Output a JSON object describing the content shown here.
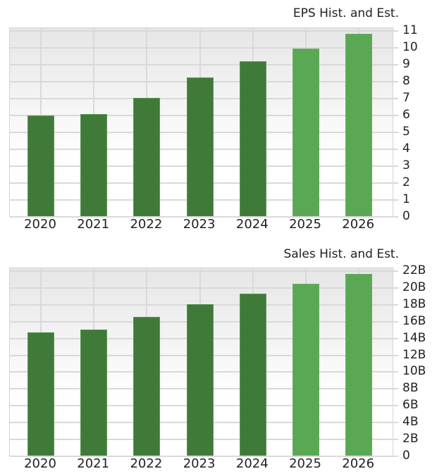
{
  "colors": {
    "historical": "#3f7a39",
    "estimate": "#5aa854",
    "grid": "#d9d9d9"
  },
  "chart_data": [
    {
      "type": "bar",
      "title": "EPS Hist. and Est.",
      "categories": [
        "2020",
        "2021",
        "2022",
        "2023",
        "2024",
        "2025",
        "2026"
      ],
      "values": [
        5.95,
        6.05,
        7.0,
        8.2,
        9.15,
        9.9,
        10.8
      ],
      "kind": [
        "hist",
        "hist",
        "hist",
        "hist",
        "hist",
        "est",
        "est"
      ],
      "xlabel": "",
      "ylabel": "",
      "ylim": [
        0,
        11
      ],
      "yticks": [
        "0",
        "1",
        "2",
        "3",
        "4",
        "5",
        "6",
        "7",
        "8",
        "9",
        "10",
        "11"
      ],
      "ytick_values": [
        0,
        1,
        2,
        3,
        4,
        5,
        6,
        7,
        8,
        9,
        10,
        11
      ],
      "grid": true,
      "yaxis_position": "right",
      "legend": "none"
    },
    {
      "type": "bar",
      "title": "Sales Hist. and Est.",
      "categories": [
        "2020",
        "2021",
        "2022",
        "2023",
        "2024",
        "2025",
        "2026"
      ],
      "values": [
        14.6,
        15.0,
        16.45,
        17.95,
        19.2,
        20.4,
        21.6
      ],
      "units": "B",
      "kind": [
        "hist",
        "hist",
        "hist",
        "hist",
        "hist",
        "est",
        "est"
      ],
      "xlabel": "",
      "ylabel": "",
      "ylim": [
        0,
        22
      ],
      "yticks": [
        "0",
        "2B",
        "4B",
        "6B",
        "8B",
        "10B",
        "12B",
        "14B",
        "16B",
        "18B",
        "20B",
        "22B"
      ],
      "ytick_values": [
        0,
        2,
        4,
        6,
        8,
        10,
        12,
        14,
        16,
        18,
        20,
        22
      ],
      "grid": true,
      "yaxis_position": "right",
      "legend": "none"
    }
  ]
}
